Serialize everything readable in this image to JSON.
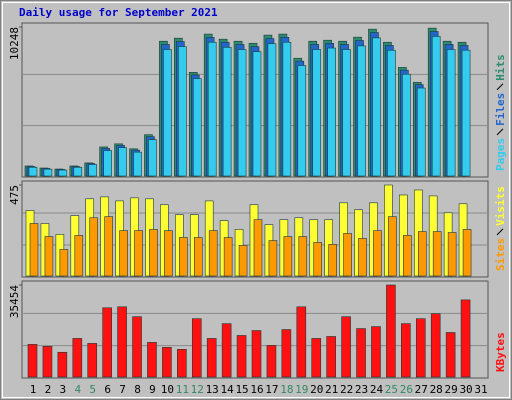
{
  "chart_data": [
    {
      "type": "bar",
      "title": "Daily usage for September 2021",
      "title_color": "#0000cc",
      "ylim": [
        0,
        10248
      ],
      "yticks": [
        10248
      ],
      "series": [
        {
          "name": "Pages",
          "color": "#33ccee",
          "values": [
            600,
            470,
            410,
            600,
            790,
            1750,
            1950,
            1640,
            2500,
            8700,
            8900,
            6700,
            9200,
            8850,
            8700,
            8550,
            9100,
            9200,
            7600,
            8700,
            8800,
            8700,
            8950,
            9500,
            8650,
            7000,
            6050,
            9600,
            8700,
            8650,
            null
          ]
        },
        {
          "name": "Files",
          "color": "#2266cc",
          "values": [
            650,
            520,
            450,
            650,
            860,
            1900,
            2100,
            1780,
            2700,
            9050,
            9250,
            6950,
            9530,
            9200,
            9050,
            8900,
            9450,
            9540,
            7900,
            9050,
            9120,
            9050,
            9320,
            9870,
            8980,
            7280,
            6280,
            9940,
            9050,
            8980,
            null
          ]
        },
        {
          "name": "Hits",
          "color": "#2e8b6e",
          "values": [
            690,
            550,
            480,
            690,
            900,
            2000,
            2210,
            1870,
            2840,
            9270,
            9480,
            7130,
            9760,
            9410,
            9270,
            9130,
            9690,
            9760,
            8100,
            9270,
            9340,
            9270,
            9550,
            10100,
            9200,
            7470,
            6440,
            10170,
            9270,
            9200,
            null
          ]
        }
      ]
    },
    {
      "type": "bar",
      "ylim": [
        0,
        475
      ],
      "yticks": [
        475
      ],
      "series": [
        {
          "name": "Sites",
          "color": "#ff9900",
          "values": [
            274,
            206,
            139,
            212,
            304,
            310,
            237,
            237,
            243,
            237,
            201,
            201,
            237,
            201,
            160,
            294,
            185,
            206,
            206,
            175,
            165,
            222,
            196,
            237,
            310,
            212,
            232,
            232,
            227,
            243,
            null
          ]
        },
        {
          "name": "Visits",
          "color": "#ffff33",
          "values": [
            342,
            274,
            217,
            315,
            403,
            413,
            392,
            408,
            403,
            372,
            320,
            320,
            392,
            289,
            243,
            372,
            268,
            294,
            304,
            294,
            294,
            382,
            346,
            382,
            475,
            423,
            449,
            418,
            330,
            377,
            null
          ]
        }
      ]
    },
    {
      "type": "bar",
      "ylim": [
        0,
        35454
      ],
      "yticks": [
        35454
      ],
      "categories": [
        "1",
        "2",
        "3",
        "4",
        "5",
        "6",
        "7",
        "8",
        "9",
        "10",
        "11",
        "12",
        "13",
        "14",
        "15",
        "16",
        "17",
        "18",
        "19",
        "20",
        "21",
        "22",
        "23",
        "24",
        "25",
        "26",
        "27",
        "28",
        "29",
        "30",
        "31"
      ],
      "category_colors": [
        "#000000",
        "#000000",
        "#000000",
        "#338866",
        "#338866",
        "#000000",
        "#000000",
        "#000000",
        "#000000",
        "#000000",
        "#338866",
        "#338866",
        "#000000",
        "#000000",
        "#000000",
        "#000000",
        "#000000",
        "#338866",
        "#338866",
        "#000000",
        "#000000",
        "#000000",
        "#000000",
        "#000000",
        "#338866",
        "#338866",
        "#000000",
        "#000000",
        "#000000",
        "#000000",
        "#000000"
      ],
      "series": [
        {
          "name": "KBytes",
          "color": "#ff1111",
          "values": [
            12570,
            11810,
            9530,
            14860,
            12950,
            26670,
            27050,
            23240,
            13340,
            11430,
            10670,
            22480,
            14860,
            20570,
            16000,
            17910,
            12190,
            18290,
            27050,
            14860,
            15620,
            23240,
            18670,
            19430,
            35454,
            20570,
            22480,
            24380,
            17150,
            29710,
            null
          ]
        }
      ]
    }
  ]
}
